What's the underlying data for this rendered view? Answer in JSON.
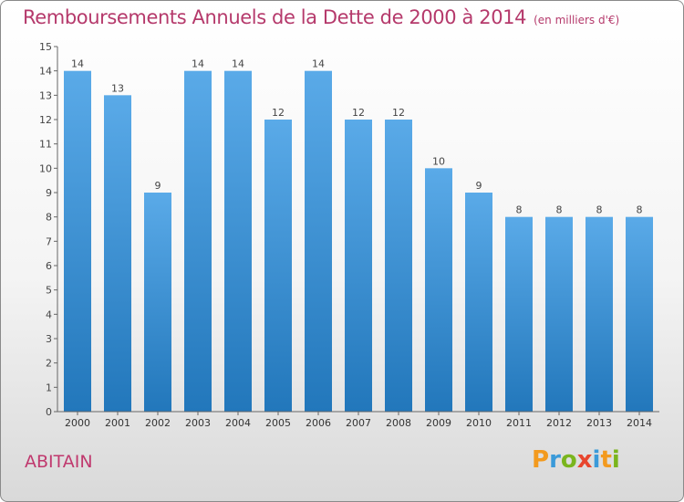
{
  "header": {
    "title": "Remboursements Annuels de la Dette de 2000 à 2014",
    "unit": "(en milliers d'€)"
  },
  "footer": {
    "commune": "ABITAIN",
    "logo_text": "Proxiti"
  },
  "colors": {
    "title": "#b5396b",
    "bar_top": "#5aaae8",
    "bar_bottom": "#2277bb",
    "axis": "#555555"
  },
  "chart_data": {
    "type": "bar",
    "title": "Remboursements Annuels de la Dette de 2000 à 2014",
    "subtitle": "(en milliers d'€)",
    "xlabel": "",
    "ylabel": "",
    "categories": [
      "2000",
      "2001",
      "2002",
      "2003",
      "2004",
      "2005",
      "2006",
      "2007",
      "2008",
      "2009",
      "2010",
      "2011",
      "2012",
      "2013",
      "2014"
    ],
    "values": [
      14,
      13,
      9,
      14,
      14,
      12,
      14,
      12,
      12,
      10,
      9,
      8,
      8,
      8,
      8
    ],
    "ylim": [
      0,
      15
    ],
    "yticks": [
      0,
      1,
      2,
      3,
      4,
      5,
      6,
      7,
      8,
      9,
      10,
      11,
      12,
      13,
      14,
      15
    ],
    "grid": false,
    "data_labels": true
  }
}
